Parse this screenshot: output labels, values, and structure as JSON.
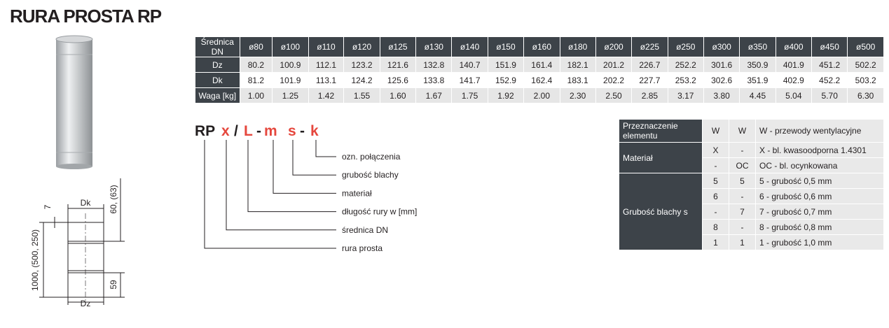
{
  "title": "RURA PROSTA RP",
  "drawing": {
    "dim_top": "7",
    "dk": "Dk",
    "dim_socket": "60, (63)",
    "length": "1000, (500, 250)",
    "dim_bottom": "59",
    "dz": "Dz"
  },
  "spec_table": {
    "header": [
      "Średnica DN",
      "ø80",
      "ø100",
      "ø110",
      "ø120",
      "ø125",
      "ø130",
      "ø140",
      "ø150",
      "ø160",
      "ø180",
      "ø200",
      "ø225",
      "ø250",
      "ø300",
      "ø350",
      "ø400",
      "ø450",
      "ø500"
    ],
    "rows": [
      [
        "Dz",
        "80.2",
        "100.9",
        "112.1",
        "123.2",
        "121.6",
        "132.8",
        "140.7",
        "151.9",
        "161.4",
        "182.1",
        "201.2",
        "226.7",
        "252.2",
        "301.6",
        "350.9",
        "401.9",
        "451.2",
        "502.2"
      ],
      [
        "Dk",
        "81.2",
        "101.9",
        "113.1",
        "124.2",
        "125.6",
        "133.8",
        "141.7",
        "152.9",
        "162.4",
        "183.1",
        "202.2",
        "227.7",
        "253.2",
        "302.6",
        "351.9",
        "402.9",
        "452.2",
        "503.2"
      ],
      [
        "Waga [kg]",
        "1.00",
        "1.25",
        "1.42",
        "1.55",
        "1.60",
        "1.67",
        "1.75",
        "1.92",
        "2.00",
        "2.30",
        "2.50",
        "2.85",
        "3.17",
        "3.80",
        "4.45",
        "5.04",
        "5.70",
        "6.30"
      ]
    ]
  },
  "code": {
    "parts": [
      {
        "text": "RP",
        "color": "#231f20"
      },
      {
        "text": "x",
        "color": "#e5473d"
      },
      {
        "text": "/",
        "color": "#231f20"
      },
      {
        "text": "L",
        "color": "#e5473d"
      },
      {
        "text": "-",
        "color": "#231f20"
      },
      {
        "text": "m",
        "color": "#e5473d"
      },
      {
        "text": "s",
        "color": "#e5473d"
      },
      {
        "text": "-",
        "color": "#231f20"
      },
      {
        "text": "k",
        "color": "#e5473d"
      }
    ],
    "legend": [
      "ozn. połączenia",
      "grubość blachy",
      "materiał",
      "długość rury w [mm]",
      "średnica DN",
      "rura prosta"
    ]
  },
  "property_table": {
    "groups": [
      {
        "label": "Przeznaczenie elementu",
        "rows": [
          [
            "W",
            "W",
            "W - przewody wentylacyjne"
          ]
        ]
      },
      {
        "label": "Materiał",
        "rows": [
          [
            "X",
            "-",
            "X - bl. kwasoodporna 1.4301"
          ],
          [
            "-",
            "OC",
            "OC - bl. ocynkowana"
          ]
        ]
      },
      {
        "label": "Grubość blachy s",
        "rows": [
          [
            "5",
            "5",
            "5 - grubość 0,5 mm"
          ],
          [
            "6",
            "-",
            "6 - grubość 0,6 mm"
          ],
          [
            "-",
            "7",
            "7 - grubość 0,7 mm"
          ],
          [
            "8",
            "-",
            "8 - grubość 0,8 mm"
          ],
          [
            "1",
            "1",
            "1 - grubość 1,0 mm"
          ]
        ]
      }
    ]
  }
}
